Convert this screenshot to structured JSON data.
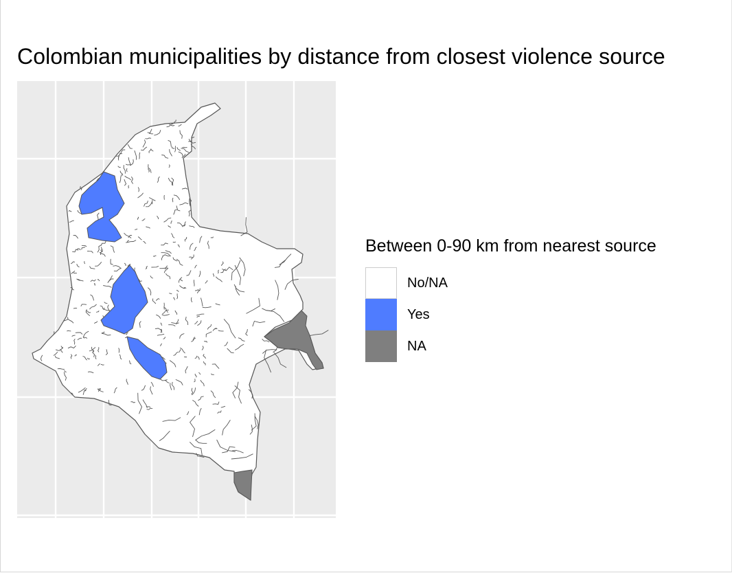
{
  "title": "Colombian municipalities by distance from closest violence source",
  "legend": {
    "title": "Between 0-90 km from nearest source",
    "items": [
      {
        "label": "No/NA",
        "color": "#ffffff"
      },
      {
        "label": "Yes",
        "color": "#4f7cff"
      },
      {
        "label": "NA",
        "color": "#7f7f7f"
      }
    ]
  },
  "colors": {
    "panel_background": "#ebebeb",
    "grid": "#ffffff",
    "border": "#555555"
  },
  "map": {
    "subject": "Colombian municipalities",
    "regions": [
      {
        "name": "northwest-cluster",
        "category": "Yes"
      },
      {
        "name": "central-cluster",
        "category": "Yes"
      },
      {
        "name": "southeast-extension",
        "category": "Yes"
      },
      {
        "name": "eastern-border",
        "category": "NA"
      },
      {
        "name": "southern-tip",
        "category": "NA"
      }
    ],
    "grid": true,
    "axis_labels": false,
    "legend_position": "right"
  }
}
